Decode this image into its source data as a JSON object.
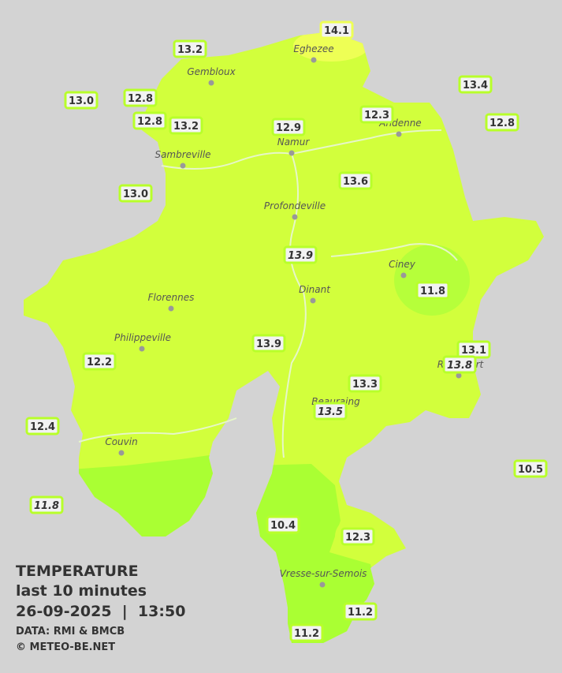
{
  "legend": {
    "title": "TEMPERATURE",
    "subtitle": "last 10 minutes",
    "datetime": "26-09-2025  |  13:50",
    "source": "DATA: RMI & BMCB",
    "credit": "© METEO-BE.NET"
  },
  "cities": [
    "Eghezee",
    "Gembloux",
    "Andenne",
    "Namur",
    "Sambreville",
    "Profondeville",
    "Ciney",
    "Dinant",
    "Florennes",
    "Philippeville",
    "Couvin",
    "Vresse-sur-Semois",
    "Rochefort",
    "Beauraing"
  ],
  "stations": [
    "14.1",
    "13.2",
    "13.0",
    "12.8",
    "12.8",
    "13.2",
    "12.9",
    "12.3",
    "13.4",
    "12.8",
    "13.0",
    "13.6",
    "13.9",
    "11.8",
    "13.9",
    "13.1",
    "13.8",
    "12.2",
    "13.3",
    "13.5",
    "12.4",
    "10.5",
    "11.8",
    "10.4",
    "12.3",
    "11.2",
    "11.2"
  ]
}
